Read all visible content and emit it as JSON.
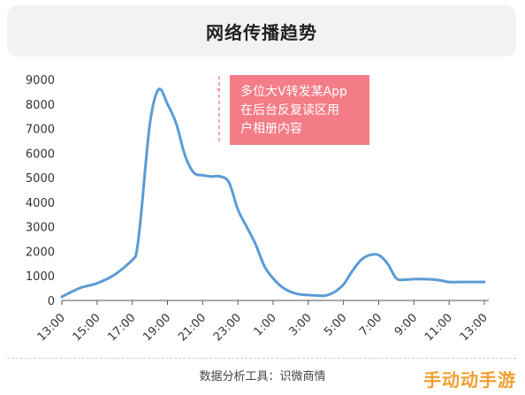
{
  "chart_data": {
    "type": "line",
    "title": "网络传播趋势",
    "xlabel": "",
    "ylabel": "",
    "ylim": [
      0,
      9000
    ],
    "yticks": [
      0,
      1000,
      2000,
      3000,
      4000,
      5000,
      6000,
      7000,
      8000,
      9000
    ],
    "categories": [
      "13:00",
      "15:00",
      "17:00",
      "19:00",
      "21:00",
      "23:00",
      "1:00",
      "3:00",
      "5:00",
      "7:00",
      "9:00",
      "11:00",
      "13:00"
    ],
    "x": [
      0,
      1,
      2,
      3,
      4,
      4.25,
      4.5,
      5,
      5.5,
      6,
      6.5,
      7,
      7.5,
      8,
      8.5,
      9,
      9.5,
      10,
      10.5,
      11,
      11.5,
      12,
      12.5,
      13,
      13.5,
      14,
      14.5,
      15,
      15.5,
      16,
      16.5,
      17,
      17.5,
      18,
      18.5,
      19,
      19.5,
      20,
      20.5,
      21,
      21.5,
      22,
      22.5,
      23,
      23.5,
      24
    ],
    "series": [
      {
        "values": [
          150,
          500,
          700,
          1050,
          1650,
          2000,
          3500,
          7200,
          8600,
          8000,
          7200,
          5900,
          5200,
          5100,
          5050,
          5050,
          4800,
          3700,
          3000,
          2300,
          1400,
          900,
          550,
          350,
          250,
          220,
          200,
          200,
          350,
          650,
          1200,
          1650,
          1850,
          1850,
          1500,
          900,
          850,
          870,
          870,
          860,
          820,
          750,
          750,
          750,
          750,
          750
        ],
        "color": "#5b9bd5"
      }
    ],
    "annotation": {
      "text_line1": "多位大V转发某App",
      "text_line2": "在后台反复读区用",
      "text_line3": "户相册内容",
      "x": 8.6,
      "y": 8600,
      "box_color": "#f47c86",
      "line_color": "#e05060"
    },
    "grid": false,
    "legend": "none"
  },
  "footer": {
    "source": "数据分析工具：识微商情",
    "watermark": "手动动手游"
  },
  "colors": {
    "line": "#5b9bd5",
    "annotation_box": "#f47c86"
  }
}
